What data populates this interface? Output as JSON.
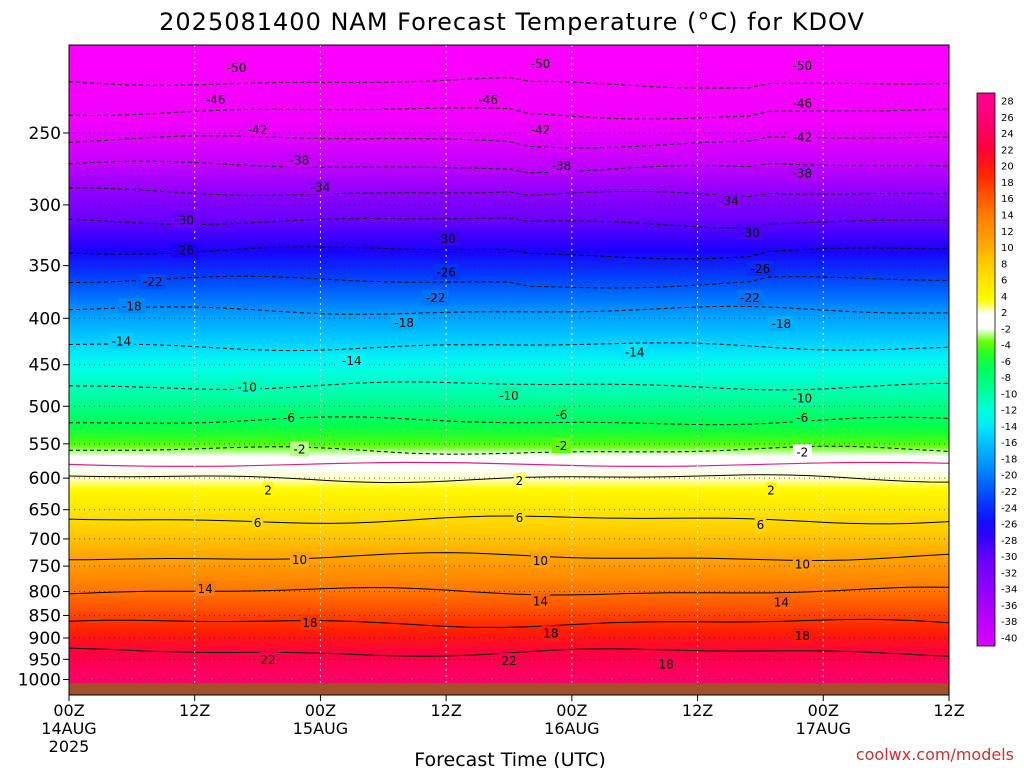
{
  "chart_data": {
    "type": "heatmap",
    "title": "2025081400 NAM Forecast Temperature (°C) for KDOV",
    "xlabel": "Forecast Time (UTC)",
    "ylabel": "",
    "credit": "coolwx.com/models",
    "x_range_hours": [
      0,
      84
    ],
    "y_scale": "log",
    "y_range_hPa": [
      1040,
      200
    ],
    "y_ticks": [
      250,
      300,
      350,
      400,
      450,
      500,
      550,
      600,
      650,
      700,
      750,
      800,
      850,
      900,
      950,
      1000
    ],
    "y_tick_labels": [
      "250",
      "300",
      "350",
      "400",
      "450",
      "500",
      "550",
      "600",
      "650",
      "700",
      "750",
      "800",
      "850",
      "900",
      "950",
      "1000"
    ],
    "x_ticks": [
      {
        "hour": 0,
        "label": "00Z",
        "date": "14AUG",
        "year": "2025"
      },
      {
        "hour": 12,
        "label": "12Z",
        "date": "",
        "year": ""
      },
      {
        "hour": 24,
        "label": "00Z",
        "date": "15AUG",
        "year": ""
      },
      {
        "hour": 36,
        "label": "12Z",
        "date": "",
        "year": ""
      },
      {
        "hour": 48,
        "label": "00Z",
        "date": "16AUG",
        "year": ""
      },
      {
        "hour": 60,
        "label": "12Z",
        "date": "",
        "year": ""
      },
      {
        "hour": 72,
        "label": "00Z",
        "date": "17AUG",
        "year": ""
      },
      {
        "hour": 84,
        "label": "12Z",
        "date": "",
        "year": ""
      }
    ],
    "grid": true,
    "surface_pressure_hPa": 1010,
    "colorbar": {
      "labels": [
        "28",
        "26",
        "24",
        "22",
        "20",
        "18",
        "16",
        "14",
        "12",
        "10",
        "8",
        "6",
        "4",
        "2",
        "-2",
        "-4",
        "-6",
        "-8",
        "-10",
        "-12",
        "-14",
        "-16",
        "-18",
        "-20",
        "-22",
        "-24",
        "-26",
        "-28",
        "-30",
        "-32",
        "-34",
        "-36",
        "-38",
        "-40"
      ]
    },
    "profile": [
      {
        "p": 200,
        "t": -55
      },
      {
        "p": 250,
        "t": -43
      },
      {
        "p": 300,
        "t": -32
      },
      {
        "p": 350,
        "t": -24
      },
      {
        "p": 400,
        "t": -17
      },
      {
        "p": 450,
        "t": -12
      },
      {
        "p": 500,
        "t": -8
      },
      {
        "p": 550,
        "t": -3
      },
      {
        "p": 600,
        "t": 2
      },
      {
        "p": 650,
        "t": 5
      },
      {
        "p": 700,
        "t": 8
      },
      {
        "p": 750,
        "t": 11
      },
      {
        "p": 800,
        "t": 14
      },
      {
        "p": 850,
        "t": 17
      },
      {
        "p": 900,
        "t": 20
      },
      {
        "p": 950,
        "t": 23
      },
      {
        "p": 1000,
        "t": 25
      },
      {
        "p": 1040,
        "t": 26
      }
    ],
    "contour_levels": [
      -50,
      -46,
      -42,
      -38,
      -34,
      -30,
      -26,
      -22,
      -18,
      -14,
      -10,
      -6,
      -2,
      2,
      6,
      10,
      14,
      18,
      22
    ],
    "contour_labels": [
      {
        "level": -50,
        "hour": 16,
        "p": 212
      },
      {
        "level": -50,
        "hour": 45,
        "p": 210
      },
      {
        "level": -50,
        "hour": 70,
        "p": 211
      },
      {
        "level": -46,
        "hour": 14,
        "p": 230
      },
      {
        "level": -46,
        "hour": 40,
        "p": 230
      },
      {
        "level": -46,
        "hour": 70,
        "p": 232
      },
      {
        "level": -42,
        "hour": 18,
        "p": 248
      },
      {
        "level": -42,
        "hour": 45,
        "p": 248
      },
      {
        "level": -42,
        "hour": 70,
        "p": 253
      },
      {
        "level": -38,
        "hour": 22,
        "p": 268
      },
      {
        "level": -38,
        "hour": 47,
        "p": 272
      },
      {
        "level": -38,
        "hour": 70,
        "p": 277
      },
      {
        "level": -34,
        "hour": 24,
        "p": 287
      },
      {
        "level": -34,
        "hour": 63,
        "p": 297
      },
      {
        "level": -30,
        "hour": 11,
        "p": 312
      },
      {
        "level": -30,
        "hour": 36,
        "p": 327
      },
      {
        "level": -30,
        "hour": 65,
        "p": 322
      },
      {
        "level": -26,
        "hour": 11,
        "p": 337
      },
      {
        "level": -26,
        "hour": 36,
        "p": 356
      },
      {
        "level": -26,
        "hour": 66,
        "p": 353
      },
      {
        "level": -22,
        "hour": 8,
        "p": 365
      },
      {
        "level": -22,
        "hour": 35,
        "p": 380
      },
      {
        "level": -22,
        "hour": 65,
        "p": 380
      },
      {
        "level": -18,
        "hour": 6,
        "p": 388
      },
      {
        "level": -18,
        "hour": 32,
        "p": 405
      },
      {
        "level": -18,
        "hour": 68,
        "p": 406
      },
      {
        "level": -14,
        "hour": 5,
        "p": 424
      },
      {
        "level": -14,
        "hour": 27,
        "p": 446
      },
      {
        "level": -14,
        "hour": 54,
        "p": 436
      },
      {
        "level": -10,
        "hour": 17,
        "p": 477
      },
      {
        "level": -10,
        "hour": 42,
        "p": 487
      },
      {
        "level": -10,
        "hour": 70,
        "p": 490
      },
      {
        "level": -6,
        "hour": 21,
        "p": 515
      },
      {
        "level": -6,
        "hour": 47,
        "p": 511
      },
      {
        "level": -6,
        "hour": 70,
        "p": 515
      },
      {
        "level": -2,
        "hour": 22,
        "p": 558
      },
      {
        "level": -2,
        "hour": 47,
        "p": 553
      },
      {
        "level": -2,
        "hour": 70,
        "p": 562
      },
      {
        "level": 2,
        "hour": 19,
        "p": 619
      },
      {
        "level": 2,
        "hour": 43,
        "p": 604
      },
      {
        "level": 2,
        "hour": 67,
        "p": 619
      },
      {
        "level": 6,
        "hour": 18,
        "p": 672
      },
      {
        "level": 6,
        "hour": 43,
        "p": 664
      },
      {
        "level": 6,
        "hour": 66,
        "p": 676
      },
      {
        "level": 10,
        "hour": 22,
        "p": 738
      },
      {
        "level": 10,
        "hour": 45,
        "p": 740
      },
      {
        "level": 10,
        "hour": 70,
        "p": 747
      },
      {
        "level": 14,
        "hour": 13,
        "p": 795
      },
      {
        "level": 14,
        "hour": 45,
        "p": 820
      },
      {
        "level": 14,
        "hour": 68,
        "p": 822
      },
      {
        "level": 18,
        "hour": 23,
        "p": 866
      },
      {
        "level": 18,
        "hour": 46,
        "p": 890
      },
      {
        "level": 18,
        "hour": 70,
        "p": 896
      },
      {
        "level": 18,
        "hour": 57,
        "p": 963
      },
      {
        "level": 22,
        "hour": 19,
        "p": 952
      },
      {
        "level": 22,
        "hour": 42,
        "p": 954
      }
    ],
    "colors": {
      "contour_pos": "#000000",
      "contour_neg": "#000000",
      "zero_line": "#e02080",
      "ground": "#a0522d",
      "grid": "#888888"
    }
  }
}
